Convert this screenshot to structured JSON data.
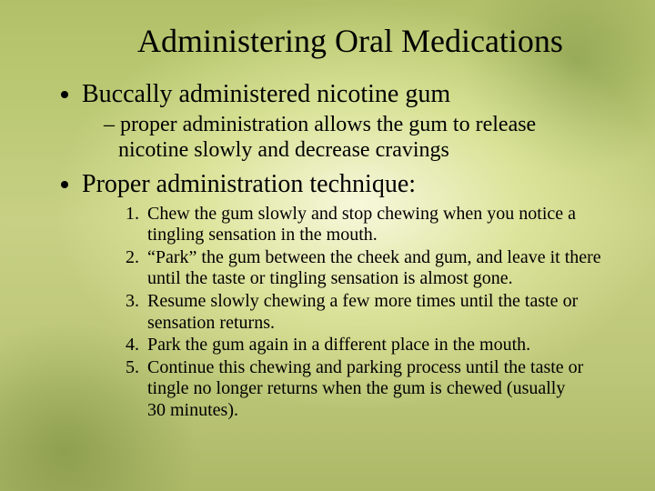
{
  "title": "Administering Oral Medications",
  "bullets": {
    "b1": {
      "text": "Buccally administered nicotine gum",
      "sub1": "proper administration allows the gum to release nicotine slowly and decrease cravings"
    },
    "b2": {
      "text": "Proper administration technique:",
      "steps": {
        "s1": "Chew the gum slowly and stop chewing when you notice a tingling sensation in the mouth.",
        "s2": "“Park” the gum between the cheek and gum, and leave it there until the taste or tingling sensation is almost gone.",
        "s3": "Resume slowly chewing a few more times until the taste or sensation returns.",
        "s4": "Park the gum again in a different place in the mouth.",
        "s5": "Continue this chewing and parking process until the taste or tingle no longer returns when the gum is chewed (usually 30 minutes)."
      }
    }
  }
}
